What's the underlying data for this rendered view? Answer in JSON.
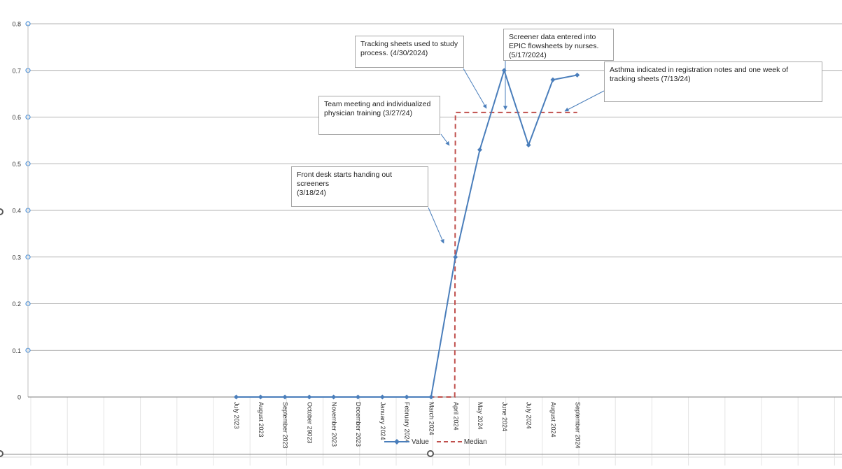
{
  "chart_data": {
    "type": "line",
    "categories": [
      "July 2023",
      "August 2023",
      "September 2023",
      "October 29023",
      "November 2023",
      "December 2023",
      "January 2024",
      "February 2024",
      "March 2024",
      "April 2024",
      "May 2024",
      "June 2024",
      "July 2024",
      "August 2024",
      "September 2024"
    ],
    "series": [
      {
        "name": "Value",
        "values": [
          0,
          0,
          0,
          0,
          0,
          0,
          0,
          0,
          0,
          0.3,
          0.53,
          0.7,
          0.54,
          0.68,
          0.69
        ],
        "color": "#4a7ebb",
        "marker": "diamond"
      },
      {
        "name": "Median",
        "values": [
          0,
          0,
          0,
          0,
          0,
          0,
          0,
          0,
          0,
          0.61,
          0.61,
          0.61,
          0.61,
          0.61,
          0.61
        ],
        "color": "#c0504d",
        "style": "dashed"
      }
    ],
    "ylim": [
      0,
      0.8
    ],
    "yticks": [
      "0",
      "0.1",
      "0.2",
      "0.3",
      "0.4",
      "0.5",
      "0.6",
      "0.7",
      "0.8"
    ],
    "grid": true,
    "legend_position": "bottom",
    "annotations": [
      {
        "lines": [
          "Front desk starts handing out",
          "screeners",
          "(3/18/24)"
        ],
        "points_to": "March 2024"
      },
      {
        "lines": [
          "Team meeting and individualized",
          "physician training (3/27/24)"
        ],
        "points_to": "March 2024"
      },
      {
        "lines": [
          "Tracking sheets used to study",
          "process. (4/30/2024)"
        ],
        "points_to": "May 2024"
      },
      {
        "lines": [
          "Screener data entered into",
          "EPIC flowsheets by nurses.",
          "(5/17/2024)"
        ],
        "points_to": "June 2024"
      },
      {
        "lines": [
          "Asthma indicated in registration notes and one week of",
          "tracking sheets (7/13/24)"
        ],
        "points_to": "August 2024"
      }
    ]
  }
}
